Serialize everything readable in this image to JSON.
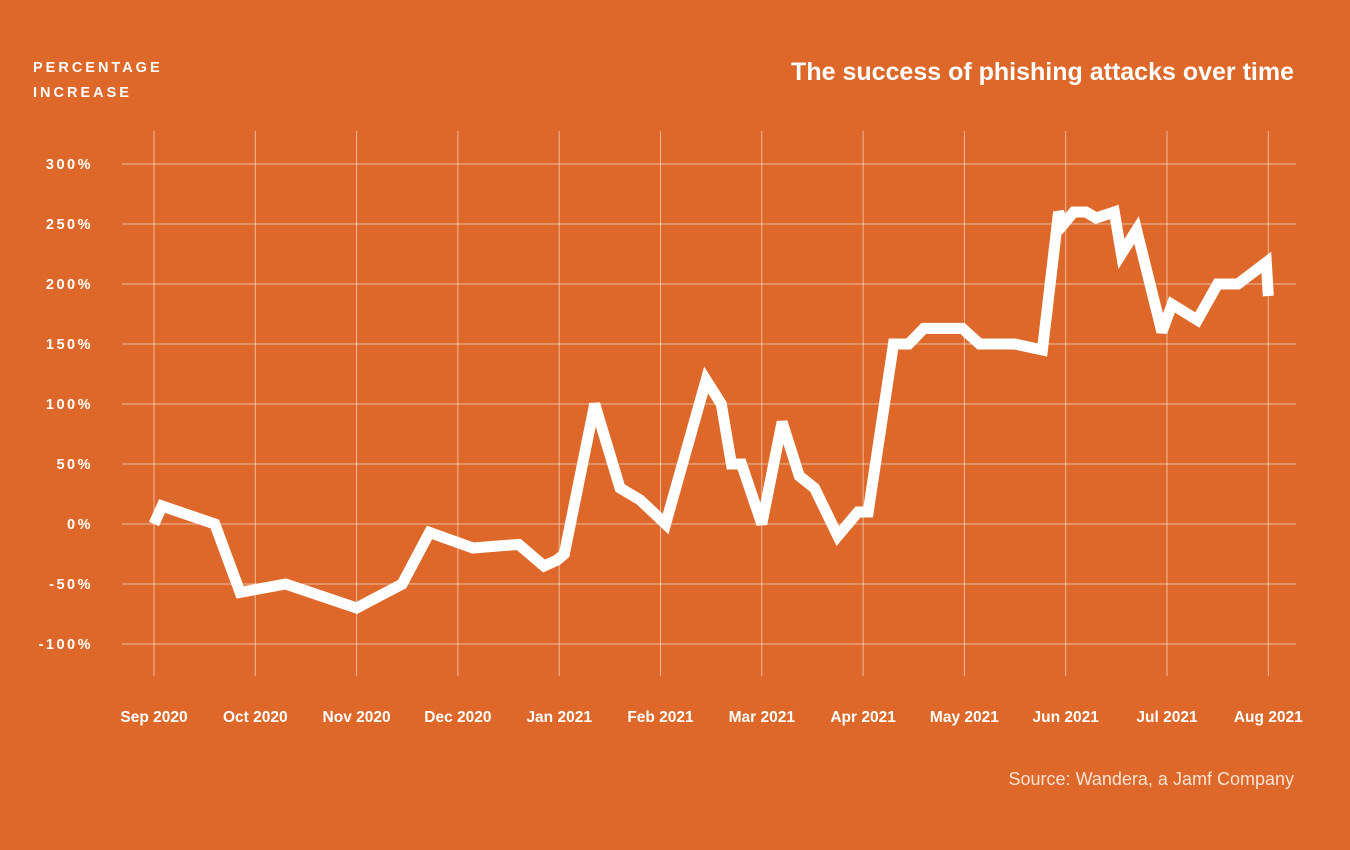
{
  "chart_data": {
    "type": "line",
    "title": "The success of phishing attacks over time",
    "ylabel": [
      "PERCENTAGE",
      "INCREASE"
    ],
    "xlabel": "",
    "source": "Source: Wandera, a Jamf Company",
    "x_ticks": [
      "Sep 2020",
      "Oct 2020",
      "Nov 2020",
      "Dec 2020",
      "Jan 2021",
      "Feb 2021",
      "Mar 2021",
      "Apr 2021",
      "May 2021",
      "Jun 2021",
      "Jul 2021",
      "Aug 2021"
    ],
    "y_ticks": [
      {
        "value": 300,
        "label": "300%"
      },
      {
        "value": 250,
        "label": "250%"
      },
      {
        "value": 200,
        "label": "200%"
      },
      {
        "value": 150,
        "label": "150%"
      },
      {
        "value": 100,
        "label": "100%"
      },
      {
        "value": 50,
        "label": "50%"
      },
      {
        "value": 0,
        "label": "0%"
      },
      {
        "value": -50,
        "label": "-50%"
      },
      {
        "value": -100,
        "label": "-100%"
      }
    ],
    "ylim": [
      -125,
      328
    ],
    "xlim": [
      -0.4,
      11.18
    ],
    "grid": true,
    "series": [
      {
        "name": "",
        "x": [
          0,
          0.08,
          0.6,
          0.85,
          1.3,
          2.0,
          2.45,
          2.72,
          3.15,
          3.6,
          3.85,
          3.98,
          4.05,
          4.35,
          4.6,
          4.8,
          5.05,
          5.45,
          5.6,
          5.7,
          5.8,
          6.0,
          6.2,
          6.37,
          6.52,
          6.75,
          6.95,
          7.05,
          7.3,
          7.45,
          7.6,
          7.72,
          7.98,
          8.15,
          8.5,
          8.77,
          8.93,
          8.98,
          9.08,
          9.2,
          9.3,
          9.48,
          9.55,
          9.7,
          9.95,
          10.05,
          10.3,
          10.5,
          10.7,
          10.98,
          11.0
        ],
        "y": [
          0,
          15,
          0,
          -57,
          -50,
          -70,
          -50,
          -7,
          -20,
          -17,
          -35,
          -30,
          -25,
          100,
          30,
          20,
          0,
          120,
          100,
          50,
          50,
          0,
          85,
          40,
          30,
          -10,
          10,
          10,
          150,
          150,
          163,
          163,
          163,
          150,
          150,
          145,
          260,
          250,
          260,
          260,
          255,
          260,
          225,
          245,
          160,
          183,
          170,
          200,
          200,
          218,
          190
        ]
      }
    ]
  }
}
